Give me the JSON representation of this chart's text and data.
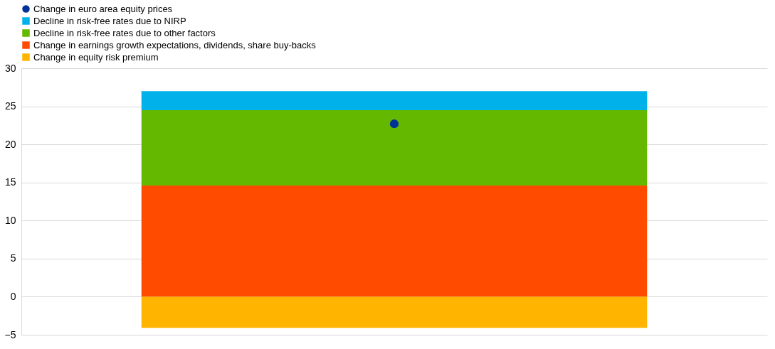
{
  "chart_data": {
    "type": "bar",
    "stacked": true,
    "categories": [
      null
    ],
    "series": [
      {
        "name": "Change in euro area equity prices",
        "type": "scatter",
        "color": "#003299",
        "values": [
          22.7
        ]
      },
      {
        "name": "Change in earnings growth expectations, dividends, share buy-backs",
        "color": "#ff4b00",
        "values": [
          14.6
        ]
      },
      {
        "name": "Decline in risk-free rates due to other factors",
        "color": "#65b800",
        "values": [
          9.9
        ]
      },
      {
        "name": "Decline in risk-free rates due to NIRP",
        "color": "#00b1ea",
        "values": [
          2.5
        ]
      },
      {
        "name": "Change in equity risk premium",
        "color": "#ffb400",
        "values": [
          -4.1
        ]
      }
    ],
    "ylim": [
      -5,
      30
    ],
    "yticks": [
      -5,
      0,
      5,
      10,
      15,
      20,
      25,
      30
    ],
    "grid": "y",
    "legend": "top",
    "tick_labels": "y",
    "marker": "circle"
  }
}
